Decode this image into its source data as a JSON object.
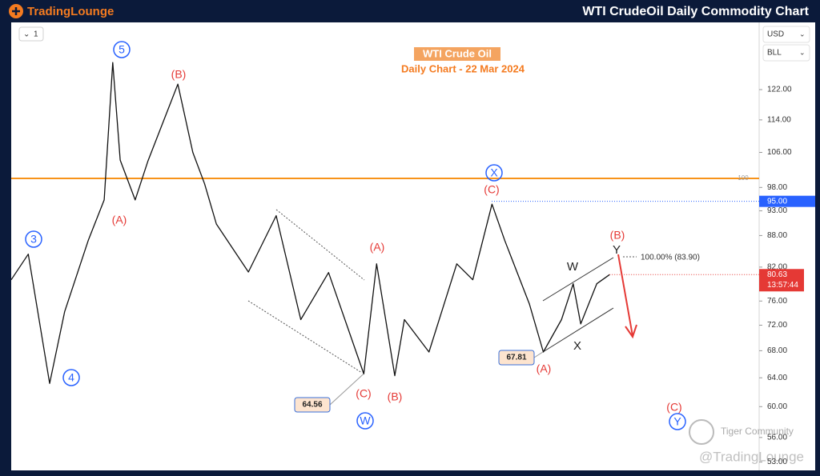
{
  "header": {
    "brand": "TradingLounge",
    "title": "WTI CrudeOil Daily Commodity Chart"
  },
  "toolbar": {
    "interval": "1",
    "currency": "USD",
    "unit": "BLL"
  },
  "watermark": {
    "community": "Tiger Community",
    "handle": "@TradingLounge"
  },
  "chart_data": {
    "type": "line",
    "title": "WTI Crude Oil",
    "subtitle": "Daily Chart - 22 Mar 2024",
    "log_scale": true,
    "color": "#111111",
    "x": [
      0,
      16,
      36,
      50,
      72,
      87,
      95,
      102,
      116,
      128,
      156,
      170,
      181,
      192,
      222,
      248,
      271,
      297,
      330,
      342,
      359,
      368,
      391,
      417,
      432,
      450,
      462,
      485,
      498,
      515,
      526,
      533,
      548,
      560
    ],
    "values": [
      79.7,
      84.4,
      63.2,
      74.2,
      87,
      95.3,
      129.6,
      104.2,
      95.3,
      104,
      123.5,
      106,
      98.8,
      90.3,
      81.1,
      92,
      72.9,
      81,
      64.56,
      82.6,
      64.3,
      72.9,
      67.8,
      82.6,
      79.7,
      94.4,
      87,
      75.5,
      67.81,
      72.9,
      79,
      72.2,
      79,
      80.63
    ],
    "xlim": [
      0,
      700
    ],
    "ylim": [
      52.3,
      141.8
    ],
    "yticks": [
      {
        "value": 122,
        "label": "122.00"
      },
      {
        "value": 114,
        "label": "114.00"
      },
      {
        "value": 106,
        "label": "106.00"
      },
      {
        "value": 98,
        "label": "98.00"
      },
      {
        "value": 93,
        "label": "93.00"
      },
      {
        "value": 88,
        "label": "88.00"
      },
      {
        "value": 82,
        "label": "82.00"
      },
      {
        "value": 76,
        "label": "76.00"
      },
      {
        "value": 72,
        "label": "72.00"
      },
      {
        "value": 68,
        "label": "68.00"
      },
      {
        "value": 64,
        "label": "64.00"
      },
      {
        "value": 60,
        "label": "60.00"
      },
      {
        "value": 56,
        "label": "56.00"
      },
      {
        "value": 53,
        "label": "53.00"
      }
    ],
    "levels": [
      {
        "value": 100,
        "label": "100",
        "color": "#f7931a"
      },
      {
        "value": 95,
        "label": "95.00",
        "color": "#2962ff"
      }
    ],
    "last_price": {
      "value": 80.63,
      "label": "80.63",
      "countdown": "13:57:44",
      "color": "#e53935"
    },
    "price_labels": [
      {
        "value": 64.56,
        "label": "64.56"
      },
      {
        "value": 67.81,
        "label": "67.81"
      }
    ],
    "fib_label": "100.00% (83.90)",
    "wave_labels": [
      "3",
      "4",
      "5",
      "(A)",
      "(B)",
      "(A)",
      "(C)",
      "W",
      "(B)",
      "X",
      "(C)",
      "(A)",
      "(B)",
      "W",
      "Y",
      "X",
      "(C)",
      "Y"
    ]
  }
}
